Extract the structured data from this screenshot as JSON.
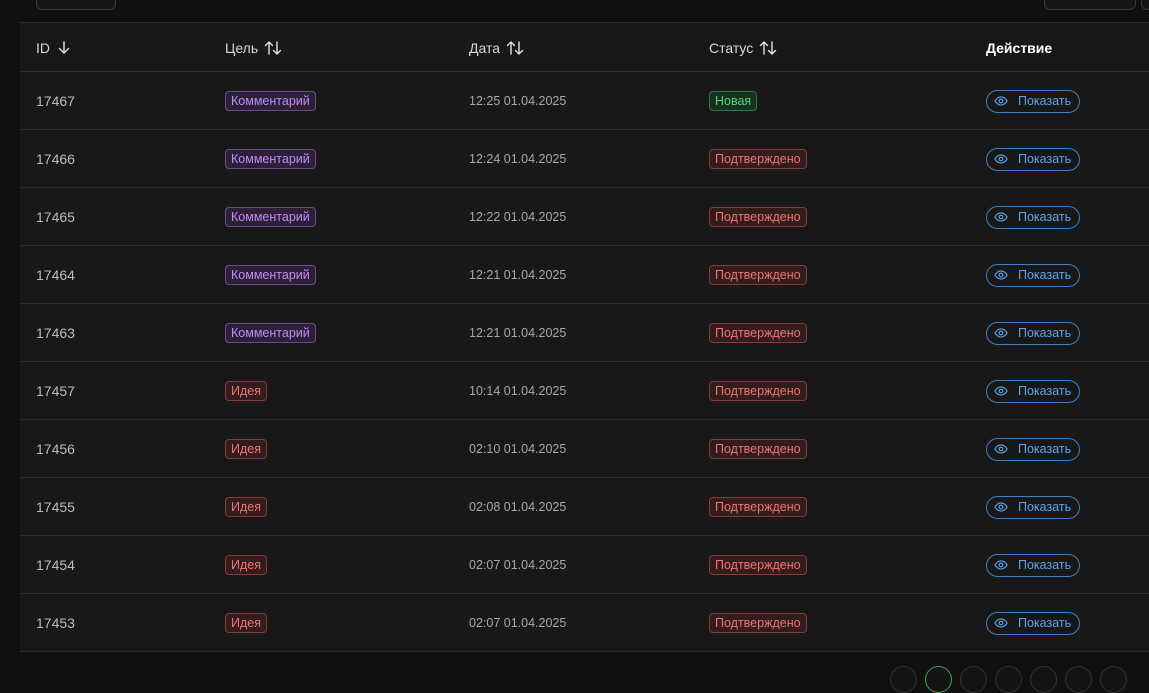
{
  "table": {
    "headers": {
      "id": "ID",
      "target": "Цель",
      "date": "Дата",
      "status": "Статус",
      "action": "Действие"
    },
    "rows": [
      {
        "id": "17467",
        "target": "Комментарий",
        "target_type": "purple",
        "date": "12:25 01.04.2025",
        "status": "Новая",
        "status_type": "green",
        "action": "Показать"
      },
      {
        "id": "17466",
        "target": "Комментарий",
        "target_type": "purple",
        "date": "12:24 01.04.2025",
        "status": "Подтверждено",
        "status_type": "red",
        "action": "Показать"
      },
      {
        "id": "17465",
        "target": "Комментарий",
        "target_type": "purple",
        "date": "12:22 01.04.2025",
        "status": "Подтверждено",
        "status_type": "red",
        "action": "Показать"
      },
      {
        "id": "17464",
        "target": "Комментарий",
        "target_type": "purple",
        "date": "12:21 01.04.2025",
        "status": "Подтверждено",
        "status_type": "red",
        "action": "Показать"
      },
      {
        "id": "17463",
        "target": "Комментарий",
        "target_type": "purple",
        "date": "12:21 01.04.2025",
        "status": "Подтверждено",
        "status_type": "red",
        "action": "Показать"
      },
      {
        "id": "17457",
        "target": "Идея",
        "target_type": "red",
        "date": "10:14 01.04.2025",
        "status": "Подтверждено",
        "status_type": "red",
        "action": "Показать"
      },
      {
        "id": "17456",
        "target": "Идея",
        "target_type": "red",
        "date": "02:10 01.04.2025",
        "status": "Подтверждено",
        "status_type": "red",
        "action": "Показать"
      },
      {
        "id": "17455",
        "target": "Идея",
        "target_type": "red",
        "date": "02:08 01.04.2025",
        "status": "Подтверждено",
        "status_type": "red",
        "action": "Показать"
      },
      {
        "id": "17454",
        "target": "Идея",
        "target_type": "red",
        "date": "02:07 01.04.2025",
        "status": "Подтверждено",
        "status_type": "red",
        "action": "Показать"
      },
      {
        "id": "17453",
        "target": "Идея",
        "target_type": "red",
        "date": "02:07 01.04.2025",
        "status": "Подтверждено",
        "status_type": "red",
        "action": "Показать"
      }
    ]
  },
  "icons": {
    "sort_desc": "arrow-down-icon",
    "sort_both": "arrows-up-down-icon",
    "view": "eye-icon"
  },
  "colors": {
    "background": "#101010",
    "table_bg": "#181818",
    "badge_purple": "#c58af9",
    "badge_red": "#f27474",
    "badge_green": "#5fd07b",
    "action_blue": "#5aa6ee"
  }
}
